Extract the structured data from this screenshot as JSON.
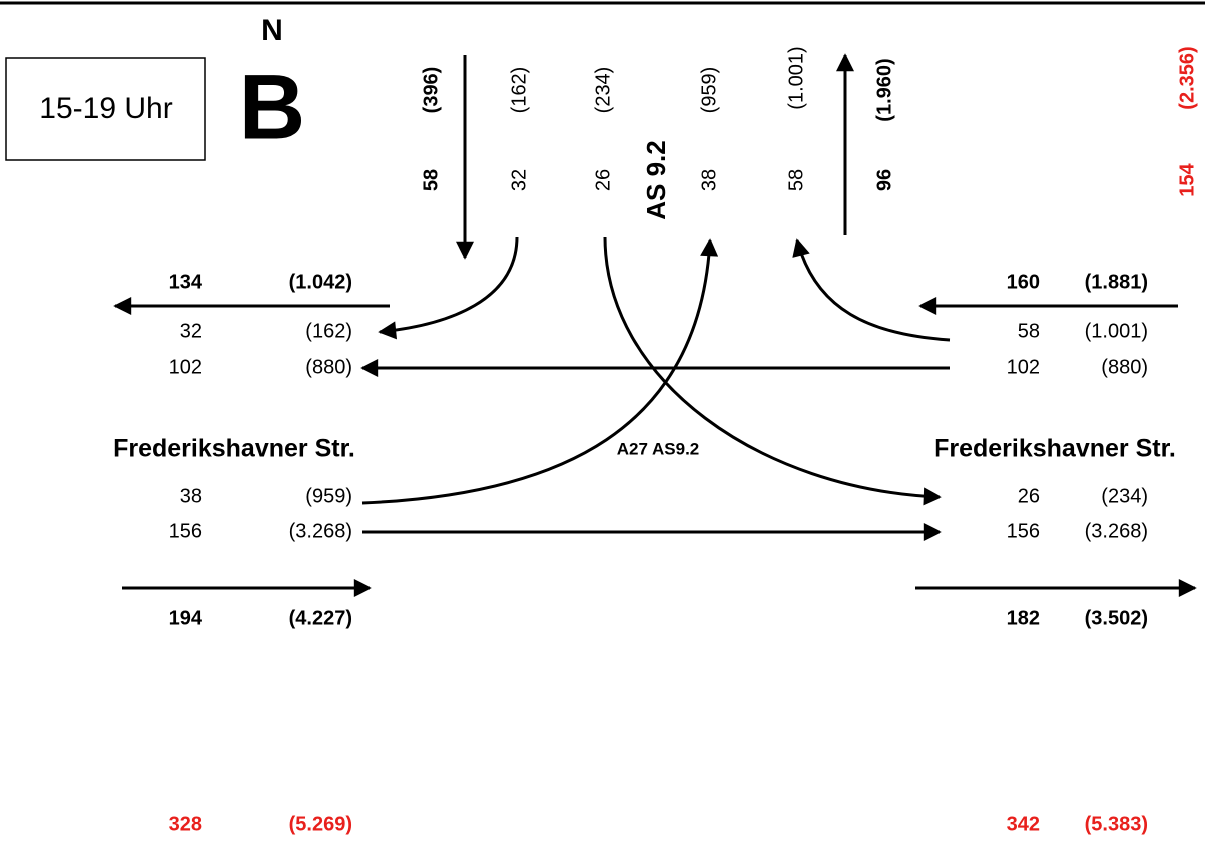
{
  "header": {
    "time": "15-19 Uhr",
    "north": "N",
    "letter": "B"
  },
  "north_arm": {
    "junction": "AS 9.2",
    "columns": [
      [
        "58",
        "(396)"
      ],
      [
        "32",
        "(162)"
      ],
      [
        "26",
        "(234)"
      ],
      [
        "38",
        "(959)"
      ],
      [
        "58",
        "(1.001)"
      ],
      [
        "96",
        "(1.960)"
      ]
    ],
    "sum": [
      "154",
      "(2.356)"
    ]
  },
  "center_label": "A27 AS9.2",
  "west_arm": {
    "street": "Frederikshavner Str.",
    "upper_total": [
      "134",
      "(1.042)"
    ],
    "upper_rows": [
      [
        "32",
        "(162)"
      ],
      [
        "102",
        "(880)"
      ]
    ],
    "lower_rows": [
      [
        "38",
        "(959)"
      ],
      [
        "156",
        "(3.268)"
      ]
    ],
    "lower_total": [
      "194",
      "(4.227)"
    ],
    "sum": [
      "328",
      "(5.269)"
    ]
  },
  "east_arm": {
    "street": "Frederikshavner Str.",
    "upper_total": [
      "160",
      "(1.881)"
    ],
    "upper_rows": [
      [
        "58",
        "(1.001)"
      ],
      [
        "102",
        "(880)"
      ]
    ],
    "lower_rows": [
      [
        "26",
        "(234)"
      ],
      [
        "156",
        "(3.268)"
      ]
    ],
    "lower_total": [
      "182",
      "(3.502)"
    ],
    "sum": [
      "342",
      "(5.383)"
    ]
  }
}
